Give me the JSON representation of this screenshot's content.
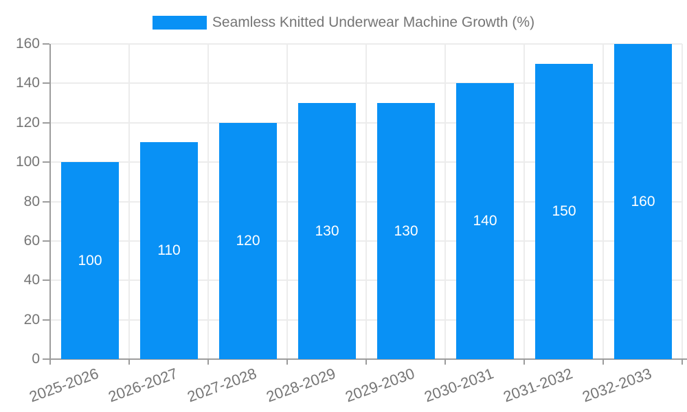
{
  "legend": {
    "label": "Seamless Knitted Underwear Machine Growth (%)"
  },
  "colors": {
    "bar": "#0991f5",
    "grid": "#ececec",
    "axis": "#9c9c9c",
    "text": "#757575",
    "bar_label": "#ffffff",
    "background": "#ffffff"
  },
  "chart_data": {
    "type": "bar",
    "title": "Seamless Knitted Underwear Machine Growth (%)",
    "categories": [
      "2025-2026",
      "2026-2027",
      "2027-2028",
      "2028-2029",
      "2029-2030",
      "2030-2031",
      "2031-2032",
      "2032-2033"
    ],
    "values": [
      100,
      110,
      120,
      130,
      130,
      140,
      150,
      160
    ],
    "xlabel": "",
    "ylabel": "",
    "ylim": [
      0,
      160
    ],
    "yticks": [
      0,
      20,
      40,
      60,
      80,
      100,
      120,
      140,
      160
    ],
    "grid": true,
    "legend_position": "top",
    "bar_label_position": "inside-center"
  }
}
